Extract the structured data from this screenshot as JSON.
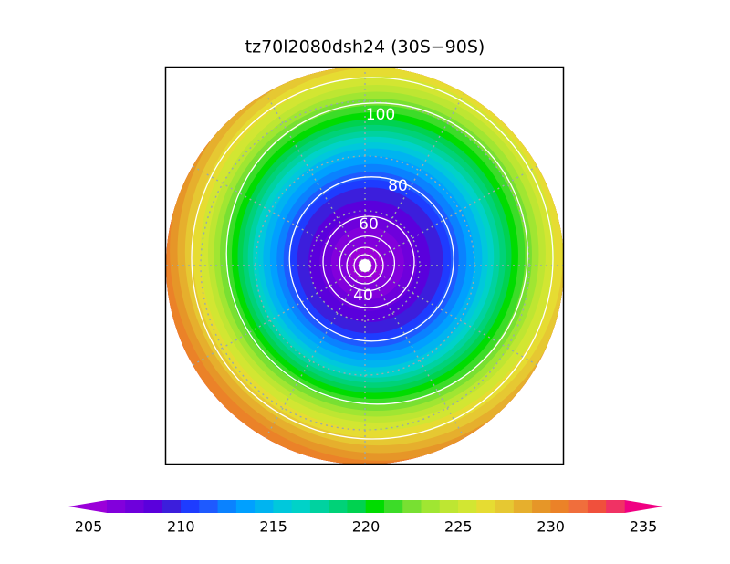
{
  "title": "tz70l2080dsh24 (30S−90S)",
  "contour_labels": [
    100,
    80,
    60,
    40
  ],
  "colorbar": {
    "ticks": [
      205,
      210,
      215,
      220,
      225,
      230,
      235
    ],
    "colors": [
      "#9b00d9",
      "#8200dc",
      "#6e00dc",
      "#5a00dc",
      "#3c1edc",
      "#1e3cff",
      "#1e5aff",
      "#0a82ff",
      "#00a0ff",
      "#00b4f0",
      "#00c8dc",
      "#00d2c8",
      "#00d2a0",
      "#00d278",
      "#00d250",
      "#00dc00",
      "#3cdc28",
      "#78e032",
      "#a0e632",
      "#bee632",
      "#d2e632",
      "#e6dc32",
      "#e6c832",
      "#e6af2d",
      "#e69628",
      "#eb8228",
      "#f06e3c",
      "#f0503c",
      "#f03264",
      "#f00082"
    ]
  }
}
